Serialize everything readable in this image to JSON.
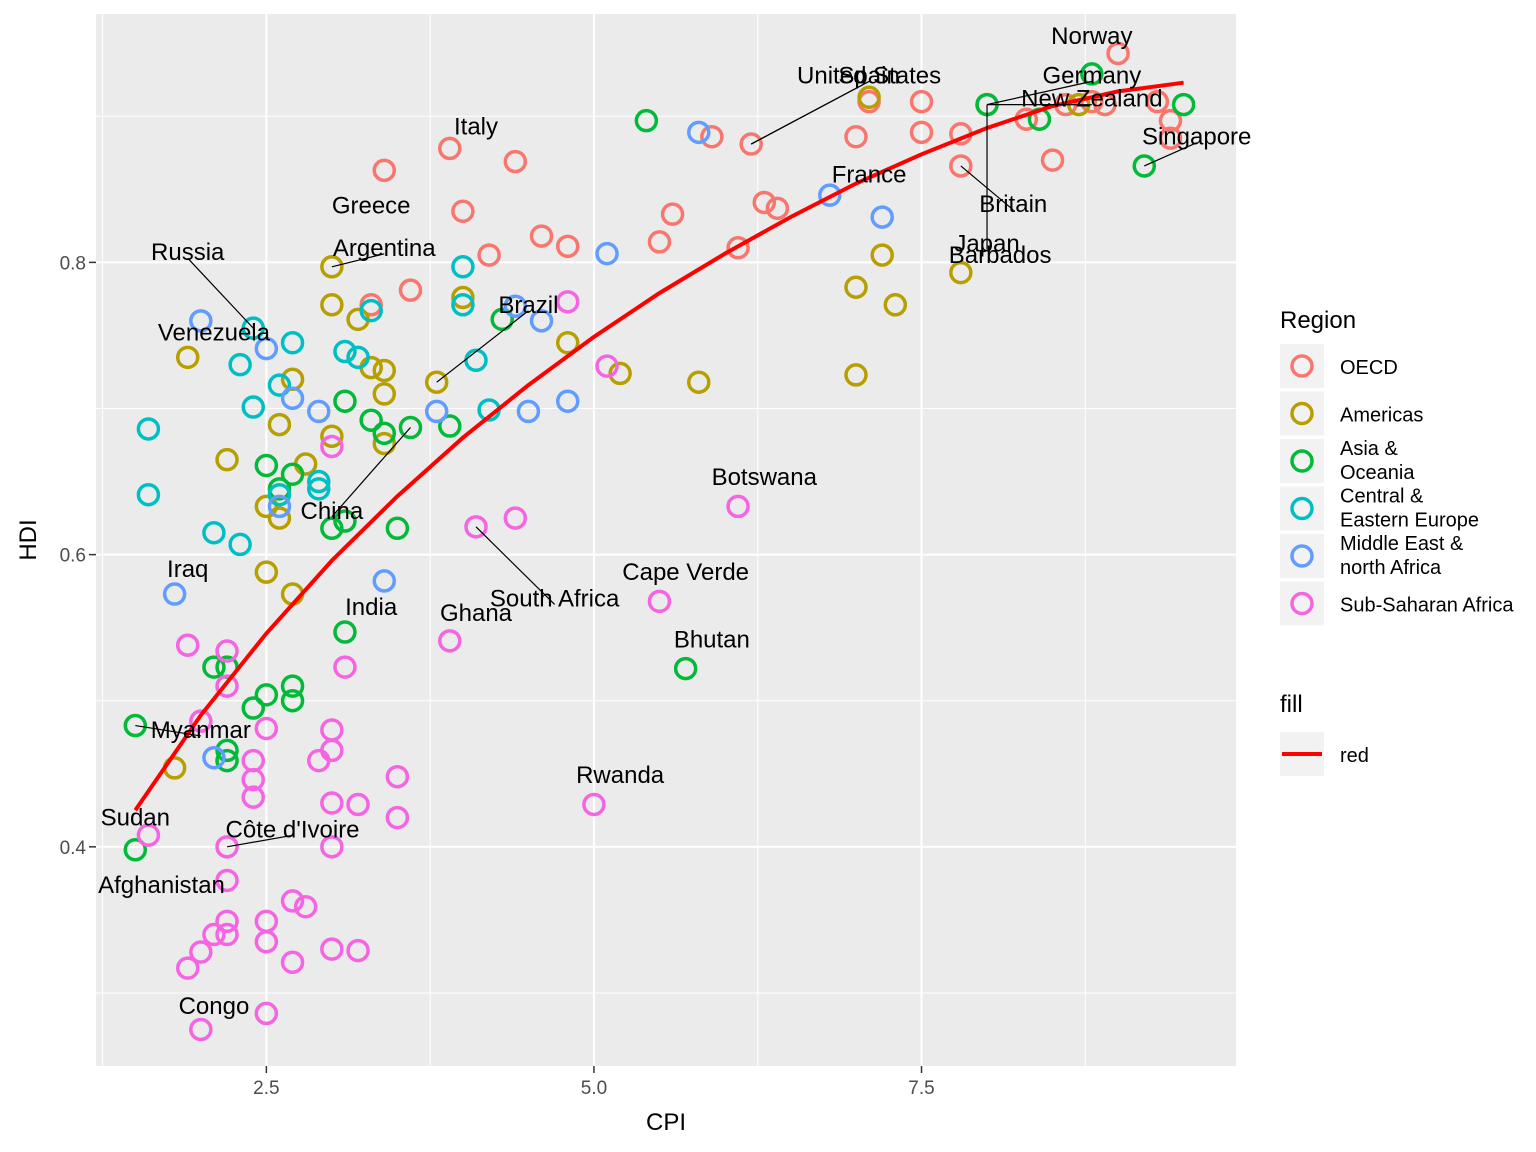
{
  "chart_data": {
    "type": "scatter",
    "title": "",
    "xlabel": "CPI",
    "ylabel": "HDI",
    "xlim": [
      1.2,
      9.9
    ],
    "ylim": [
      0.25,
      0.97
    ],
    "x_ticks": [
      2.5,
      5.0,
      7.5
    ],
    "x_tick_labels": [
      "2.5",
      "5.0",
      "7.5"
    ],
    "y_ticks": [
      0.4,
      0.6,
      0.8
    ],
    "y_tick_labels": [
      "0.4",
      "0.6",
      "0.8"
    ],
    "grid": true,
    "background": "#EBEBEB",
    "legend": {
      "position": "right",
      "region_title": "Region",
      "fill_title": "fill",
      "fill_label": "red"
    },
    "series": [
      {
        "name": "OECD",
        "color": "#F8766D",
        "points": [
          [
            9.0,
            0.943
          ],
          [
            8.8,
            0.91
          ],
          [
            8.9,
            0.908
          ],
          [
            8.6,
            0.908
          ],
          [
            9.3,
            0.91
          ],
          [
            9.4,
            0.897
          ],
          [
            9.4,
            0.885
          ],
          [
            8.3,
            0.898
          ],
          [
            8.0,
            0.908
          ],
          [
            7.5,
            0.91
          ],
          [
            7.1,
            0.91
          ],
          [
            7.5,
            0.889
          ],
          [
            7.8,
            0.888
          ],
          [
            7.0,
            0.886
          ],
          [
            7.8,
            0.866
          ],
          [
            8.5,
            0.87
          ],
          [
            6.2,
            0.881
          ],
          [
            5.9,
            0.886
          ],
          [
            6.3,
            0.841
          ],
          [
            6.4,
            0.837
          ],
          [
            5.6,
            0.833
          ],
          [
            5.5,
            0.814
          ],
          [
            6.1,
            0.81
          ],
          [
            4.6,
            0.818
          ],
          [
            4.8,
            0.811
          ],
          [
            4.4,
            0.869
          ],
          [
            3.9,
            0.878
          ],
          [
            4.0,
            0.835
          ],
          [
            4.2,
            0.805
          ],
          [
            3.4,
            0.863
          ],
          [
            3.6,
            0.781
          ],
          [
            3.3,
            0.771
          ]
        ]
      },
      {
        "name": "Americas",
        "color": "#B79F00",
        "points": [
          [
            8.7,
            0.908
          ],
          [
            7.1,
            0.913
          ],
          [
            7.2,
            0.805
          ],
          [
            7.0,
            0.783
          ],
          [
            7.3,
            0.771
          ],
          [
            7.8,
            0.793
          ],
          [
            7.0,
            0.723
          ],
          [
            5.8,
            0.718
          ],
          [
            5.2,
            0.724
          ],
          [
            4.8,
            0.745
          ],
          [
            3.8,
            0.718
          ],
          [
            4.0,
            0.776
          ],
          [
            3.0,
            0.797
          ],
          [
            3.0,
            0.771
          ],
          [
            3.2,
            0.761
          ],
          [
            3.3,
            0.728
          ],
          [
            3.4,
            0.726
          ],
          [
            3.4,
            0.71
          ],
          [
            3.4,
            0.676
          ],
          [
            3.0,
            0.681
          ],
          [
            2.7,
            0.72
          ],
          [
            2.6,
            0.689
          ],
          [
            2.8,
            0.662
          ],
          [
            2.5,
            0.633
          ],
          [
            2.6,
            0.625
          ],
          [
            2.5,
            0.588
          ],
          [
            2.7,
            0.573
          ],
          [
            2.2,
            0.665
          ],
          [
            1.9,
            0.735
          ],
          [
            1.8,
            0.454
          ]
        ]
      },
      {
        "name": "Asia & Oceania",
        "color": "#00BA38",
        "points": [
          [
            9.5,
            0.908
          ],
          [
            9.2,
            0.866
          ],
          [
            8.8,
            0.929
          ],
          [
            8.4,
            0.898
          ],
          [
            8.0,
            0.908
          ],
          [
            5.4,
            0.897
          ],
          [
            5.7,
            0.522
          ],
          [
            4.3,
            0.761
          ],
          [
            3.9,
            0.688
          ],
          [
            3.6,
            0.687
          ],
          [
            3.4,
            0.683
          ],
          [
            3.3,
            0.692
          ],
          [
            3.1,
            0.705
          ],
          [
            3.1,
            0.623
          ],
          [
            3.0,
            0.618
          ],
          [
            3.5,
            0.618
          ],
          [
            3.1,
            0.547
          ],
          [
            2.7,
            0.655
          ],
          [
            2.6,
            0.645
          ],
          [
            2.5,
            0.661
          ],
          [
            2.7,
            0.51
          ],
          [
            2.7,
            0.5
          ],
          [
            2.5,
            0.504
          ],
          [
            2.4,
            0.495
          ],
          [
            2.2,
            0.523
          ],
          [
            2.1,
            0.523
          ],
          [
            2.2,
            0.466
          ],
          [
            2.2,
            0.459
          ],
          [
            1.5,
            0.483
          ],
          [
            1.5,
            0.398
          ]
        ]
      },
      {
        "name": "Central & Eastern Europe",
        "color": "#00BFC4",
        "points": [
          [
            4.0,
            0.797
          ],
          [
            4.0,
            0.771
          ],
          [
            3.3,
            0.767
          ],
          [
            3.1,
            0.739
          ],
          [
            3.2,
            0.735
          ],
          [
            4.1,
            0.733
          ],
          [
            4.2,
            0.699
          ],
          [
            2.4,
            0.755
          ],
          [
            2.7,
            0.745
          ],
          [
            2.3,
            0.73
          ],
          [
            2.6,
            0.716
          ],
          [
            2.4,
            0.701
          ],
          [
            2.9,
            0.65
          ],
          [
            2.9,
            0.645
          ],
          [
            2.6,
            0.641
          ],
          [
            2.1,
            0.615
          ],
          [
            2.3,
            0.607
          ],
          [
            1.6,
            0.641
          ],
          [
            1.6,
            0.686
          ]
        ]
      },
      {
        "name": "Middle East & north Africa",
        "color": "#619CFF",
        "points": [
          [
            5.8,
            0.889
          ],
          [
            6.8,
            0.846
          ],
          [
            7.2,
            0.831
          ],
          [
            5.1,
            0.806
          ],
          [
            4.4,
            0.77
          ],
          [
            4.6,
            0.76
          ],
          [
            4.8,
            0.705
          ],
          [
            4.5,
            0.698
          ],
          [
            3.8,
            0.698
          ],
          [
            2.0,
            0.76
          ],
          [
            2.5,
            0.741
          ],
          [
            2.7,
            0.707
          ],
          [
            2.9,
            0.698
          ],
          [
            2.6,
            0.633
          ],
          [
            3.4,
            0.582
          ],
          [
            1.8,
            0.573
          ],
          [
            2.1,
            0.461
          ]
        ]
      },
      {
        "name": "Sub-Saharan Africa",
        "color": "#F564E3",
        "points": [
          [
            6.1,
            0.633
          ],
          [
            5.5,
            0.568
          ],
          [
            5.1,
            0.729
          ],
          [
            4.8,
            0.773
          ],
          [
            4.1,
            0.619
          ],
          [
            4.4,
            0.625
          ],
          [
            5.0,
            0.429
          ],
          [
            3.9,
            0.541
          ],
          [
            3.0,
            0.674
          ],
          [
            3.1,
            0.523
          ],
          [
            2.2,
            0.534
          ],
          [
            2.2,
            0.51
          ],
          [
            2.5,
            0.481
          ],
          [
            2.0,
            0.486
          ],
          [
            1.9,
            0.538
          ],
          [
            3.0,
            0.48
          ],
          [
            3.0,
            0.466
          ],
          [
            2.9,
            0.459
          ],
          [
            2.4,
            0.459
          ],
          [
            2.4,
            0.446
          ],
          [
            2.4,
            0.434
          ],
          [
            3.0,
            0.43
          ],
          [
            3.2,
            0.429
          ],
          [
            3.5,
            0.448
          ],
          [
            3.5,
            0.42
          ],
          [
            1.6,
            0.408
          ],
          [
            2.2,
            0.4
          ],
          [
            3.0,
            0.4
          ],
          [
            2.2,
            0.377
          ],
          [
            2.7,
            0.363
          ],
          [
            2.8,
            0.359
          ],
          [
            2.5,
            0.349
          ],
          [
            2.2,
            0.349
          ],
          [
            2.1,
            0.34
          ],
          [
            2.2,
            0.34
          ],
          [
            2.5,
            0.335
          ],
          [
            3.0,
            0.33
          ],
          [
            3.2,
            0.329
          ],
          [
            2.0,
            0.328
          ],
          [
            2.7,
            0.321
          ],
          [
            1.9,
            0.317
          ],
          [
            2.5,
            0.286
          ],
          [
            2.0,
            0.275
          ]
        ]
      }
    ],
    "trend_line": {
      "name": "red",
      "color": "#FF0000",
      "points": [
        [
          1.5,
          0.425
        ],
        [
          2.0,
          0.49
        ],
        [
          2.5,
          0.546
        ],
        [
          3.0,
          0.596
        ],
        [
          3.5,
          0.64
        ],
        [
          4.0,
          0.68
        ],
        [
          4.5,
          0.716
        ],
        [
          5.0,
          0.749
        ],
        [
          5.5,
          0.779
        ],
        [
          6.0,
          0.806
        ],
        [
          6.5,
          0.831
        ],
        [
          7.0,
          0.854
        ],
        [
          7.5,
          0.874
        ],
        [
          8.0,
          0.892
        ],
        [
          8.5,
          0.907
        ],
        [
          9.0,
          0.917
        ],
        [
          9.5,
          0.923
        ]
      ]
    },
    "annotations": [
      {
        "text": "Norway",
        "x": 9.0,
        "y": 0.943,
        "tx": 8.8,
        "ty": 0.955
      },
      {
        "text": "United States",
        "x": 6.2,
        "y": 0.881,
        "tx": 7.1,
        "ty": 0.928
      },
      {
        "text": "Spain",
        "x": 6.2,
        "y": 0.881,
        "tx": 7.1,
        "ty": 0.928
      },
      {
        "text": "Germany",
        "x": 8.0,
        "y": 0.908,
        "tx": 8.8,
        "ty": 0.928
      },
      {
        "text": "New Zealand",
        "x": 8.0,
        "y": 0.908,
        "tx": 8.8,
        "ty": 0.912
      },
      {
        "text": "Italy",
        "x": 3.9,
        "y": 0.878,
        "tx": 4.1,
        "ty": 0.893
      },
      {
        "text": "Singapore",
        "x": 9.2,
        "y": 0.866,
        "tx": 9.6,
        "ty": 0.886
      },
      {
        "text": "France",
        "x": 6.8,
        "y": 0.846,
        "tx": 7.1,
        "ty": 0.86
      },
      {
        "text": "Greece",
        "x": 3.4,
        "y": 0.863,
        "tx": 3.3,
        "ty": 0.839
      },
      {
        "text": "Britain",
        "x": 7.8,
        "y": 0.866,
        "tx": 8.2,
        "ty": 0.84
      },
      {
        "text": "Argentina",
        "x": 3.0,
        "y": 0.797,
        "tx": 3.4,
        "ty": 0.81
      },
      {
        "text": "Japan",
        "x": 8.0,
        "y": 0.908,
        "tx": 8.0,
        "ty": 0.813
      },
      {
        "text": "Barbados",
        "x": 7.8,
        "y": 0.793,
        "tx": 8.1,
        "ty": 0.805
      },
      {
        "text": "Russia",
        "x": 2.4,
        "y": 0.755,
        "tx": 1.9,
        "ty": 0.807
      },
      {
        "text": "Brazil",
        "x": 3.8,
        "y": 0.718,
        "tx": 4.5,
        "ty": 0.771
      },
      {
        "text": "Venezuela",
        "x": 2.0,
        "y": 0.76,
        "tx": 2.1,
        "ty": 0.752
      },
      {
        "text": "Botswana",
        "x": 6.1,
        "y": 0.633,
        "tx": 6.3,
        "ty": 0.653
      },
      {
        "text": "China",
        "x": 3.6,
        "y": 0.687,
        "tx": 3.0,
        "ty": 0.63
      },
      {
        "text": "Cape Verde",
        "x": 5.5,
        "y": 0.568,
        "tx": 5.7,
        "ty": 0.588
      },
      {
        "text": "Iraq",
        "x": 1.8,
        "y": 0.573,
        "tx": 1.9,
        "ty": 0.59
      },
      {
        "text": "South Africa",
        "x": 4.1,
        "y": 0.619,
        "tx": 4.7,
        "ty": 0.57
      },
      {
        "text": "India",
        "x": 3.1,
        "y": 0.547,
        "tx": 3.3,
        "ty": 0.564
      },
      {
        "text": "Ghana",
        "x": 3.9,
        "y": 0.541,
        "tx": 4.1,
        "ty": 0.56
      },
      {
        "text": "Bhutan",
        "x": 5.7,
        "y": 0.522,
        "tx": 5.9,
        "ty": 0.542
      },
      {
        "text": "Myanmar",
        "x": 1.5,
        "y": 0.483,
        "tx": 2.0,
        "ty": 0.48
      },
      {
        "text": "Rwanda",
        "x": 5.0,
        "y": 0.429,
        "tx": 5.2,
        "ty": 0.449
      },
      {
        "text": "Sudan",
        "x": 1.6,
        "y": 0.408,
        "tx": 1.5,
        "ty": 0.42
      },
      {
        "text": "Côte d'Ivoire",
        "x": 2.2,
        "y": 0.4,
        "tx": 2.7,
        "ty": 0.412
      },
      {
        "text": "Afghanistan",
        "x": 1.5,
        "y": 0.398,
        "tx": 1.7,
        "ty": 0.374
      },
      {
        "text": "Congo",
        "x": 2.0,
        "y": 0.275,
        "tx": 2.1,
        "ty": 0.291
      }
    ]
  }
}
